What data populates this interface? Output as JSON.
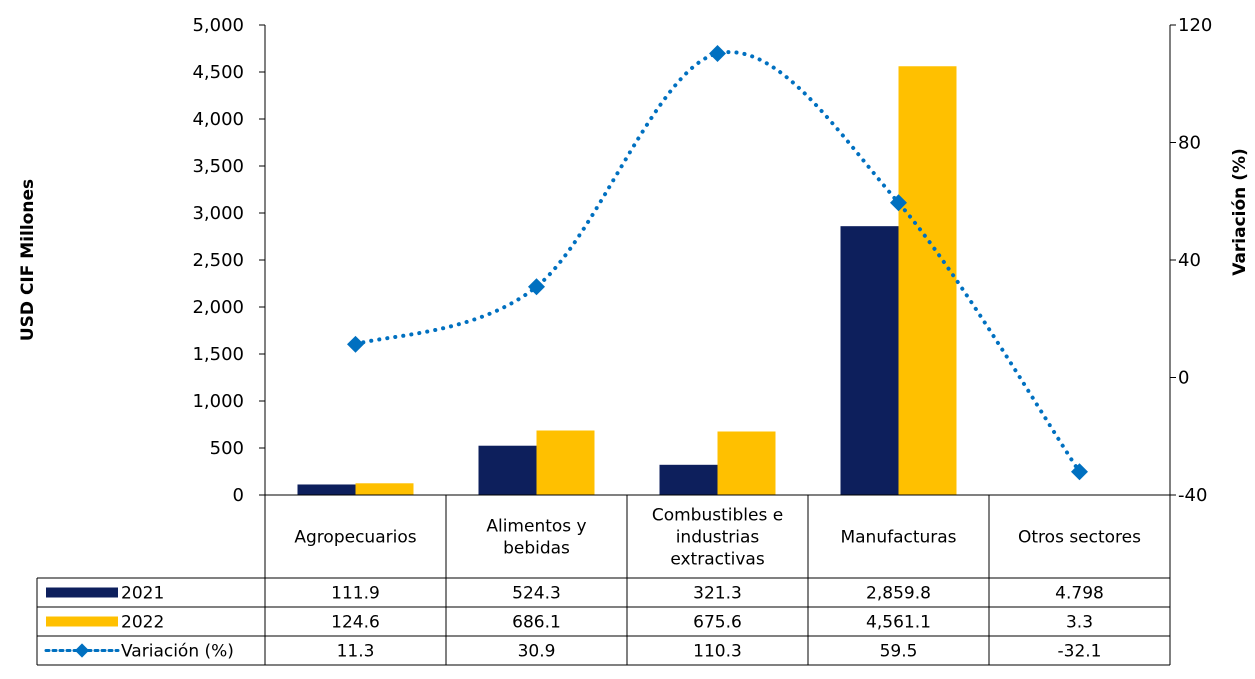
{
  "chart_data": {
    "type": "bar",
    "categories": [
      [
        "Agropecuarios"
      ],
      [
        "Alimentos y",
        "bebidas"
      ],
      [
        "Combustibles e",
        "industrias",
        "extractivas"
      ],
      [
        "Manufacturas"
      ],
      [
        "Otros sectores"
      ]
    ],
    "series": [
      {
        "name": "2021",
        "kind": "bar",
        "axis": "left",
        "color": "#0D1F5C",
        "values": [
          111.9,
          524.3,
          321.3,
          2859.8,
          4.798
        ],
        "labels": [
          "111.9",
          "524.3",
          "321.3",
          "2,859.8",
          "4.798"
        ]
      },
      {
        "name": "2022",
        "kind": "bar",
        "axis": "left",
        "color": "#FFC000",
        "values": [
          124.6,
          686.1,
          675.6,
          4561.1,
          3.3
        ],
        "labels": [
          "124.6",
          "686.1",
          "675.6",
          "4,561.1",
          "3.3"
        ]
      },
      {
        "name": "Variación (%)",
        "kind": "line",
        "axis": "right",
        "color": "#0070C0",
        "values": [
          11.3,
          30.9,
          110.3,
          59.5,
          -32.1
        ],
        "labels": [
          "11.3",
          "30.9",
          "110.3",
          "59.5",
          "-32.1"
        ]
      }
    ],
    "ylabel": "USD CIF Millones",
    "y2label": "Variación (%)",
    "ylim": [
      0,
      5000
    ],
    "y2lim": [
      -40,
      120
    ],
    "yticks": [
      "0",
      "500",
      "1,000",
      "1,500",
      "2,000",
      "2,500",
      "3,000",
      "3,500",
      "4,000",
      "4,500",
      "5,000"
    ],
    "y2ticks": [
      "-40",
      "0",
      "40",
      "80",
      "120"
    ],
    "data_table": true,
    "legend": "data-table",
    "grid": false
  }
}
